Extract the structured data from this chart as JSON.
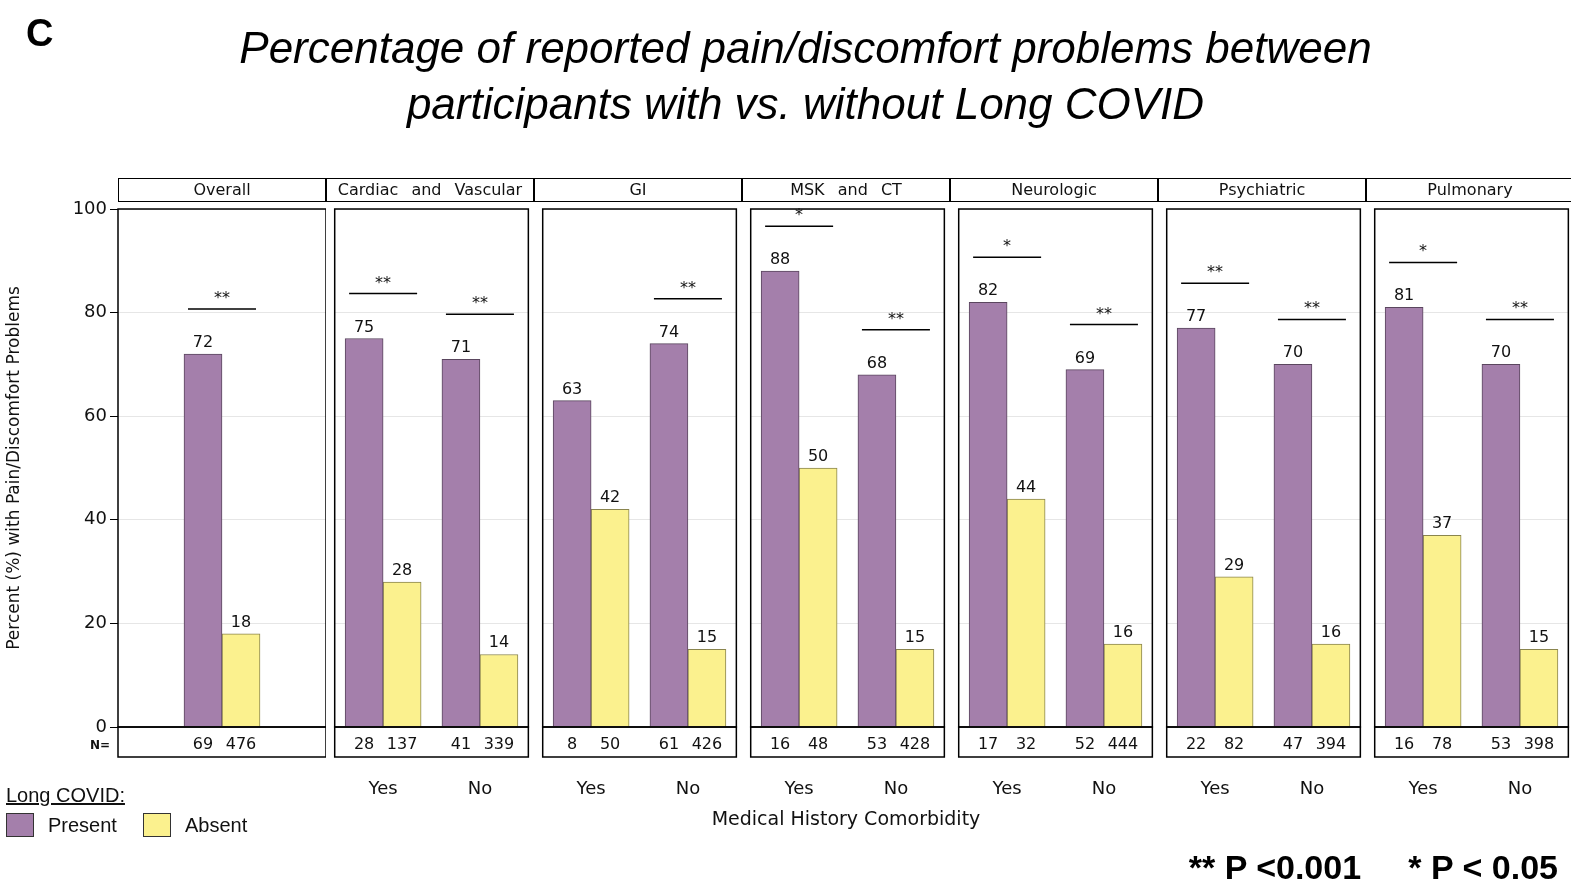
{
  "chart_data": [
    {
      "type": "bar",
      "title": "Percentage of reported pain/discomfort problems between participants with vs. without Long COVID",
      "subtitle": "Overall",
      "ylabel": "Percent (%) with Pain/Discomfort Problems",
      "legend_title": "Long COVID:",
      "legend": "bottom left",
      "categories": [
        null
      ],
      "series": [
        {
          "name": "Present",
          "color": "#a47fab",
          "values": [
            72
          ]
        },
        {
          "name": "Absent",
          "color": "#fbf18e",
          "values": [
            18
          ]
        }
      ],
      "ylim": [
        0,
        100
      ],
      "yticks": [
        0,
        20,
        40,
        60,
        80,
        100
      ],
      "grid": "y",
      "tick_labels": "y",
      "data_labels": true,
      "annotations": [
        {
          "text": "**",
          "y": 72
        },
        "69",
        "476",
        "N=",
        "C"
      ]
    },
    {
      "type": "bar",
      "subtitle": "Cardiac and Vascular",
      "categories": [
        "Yes",
        "No"
      ],
      "series": [
        {
          "color": "#a47fab",
          "values": [
            75,
            71
          ]
        },
        {
          "color": "#fbf18e",
          "values": [
            28,
            14
          ]
        }
      ],
      "ylim": [
        0,
        100
      ],
      "yticks": [
        0,
        20,
        40,
        60,
        80,
        100
      ],
      "grid": "y",
      "tick_labels": "x",
      "data_labels": true,
      "annotations": [
        {
          "text": "**",
          "x": "Yes",
          "y": 75
        },
        {
          "text": "**",
          "x": "No",
          "y": 71
        },
        "28",
        "137",
        "41",
        "339"
      ]
    },
    {
      "type": "bar",
      "subtitle": "GI",
      "categories": [
        "Yes",
        "No"
      ],
      "series": [
        {
          "color": "#a47fab",
          "values": [
            63,
            74
          ]
        },
        {
          "color": "#fbf18e",
          "values": [
            42,
            15
          ]
        }
      ],
      "ylim": [
        0,
        100
      ],
      "yticks": [
        0,
        20,
        40,
        60,
        80,
        100
      ],
      "grid": "y",
      "tick_labels": "x",
      "data_labels": true,
      "annotations": [
        {
          "text": "**",
          "x": "No",
          "y": 74
        },
        "8",
        "50",
        "61",
        "426"
      ]
    },
    {
      "type": "bar",
      "subtitle": "MSK and CT",
      "xlabel": "Medical History Comorbidity",
      "categories": [
        "Yes",
        "No"
      ],
      "series": [
        {
          "color": "#a47fab",
          "values": [
            88,
            68
          ]
        },
        {
          "color": "#fbf18e",
          "values": [
            50,
            15
          ]
        }
      ],
      "ylim": [
        0,
        100
      ],
      "yticks": [
        0,
        20,
        40,
        60,
        80,
        100
      ],
      "grid": "y",
      "tick_labels": "x",
      "data_labels": true,
      "annotations": [
        {
          "text": "*",
          "x": "Yes",
          "y": 88
        },
        {
          "text": "**",
          "x": "No",
          "y": 68
        },
        "16",
        "48",
        "53",
        "428"
      ]
    },
    {
      "type": "bar",
      "subtitle": "Neurologic",
      "categories": [
        "Yes",
        "No"
      ],
      "series": [
        {
          "color": "#a47fab",
          "values": [
            82,
            69
          ]
        },
        {
          "color": "#fbf18e",
          "values": [
            44,
            16
          ]
        }
      ],
      "ylim": [
        0,
        100
      ],
      "yticks": [
        0,
        20,
        40,
        60,
        80,
        100
      ],
      "grid": "y",
      "tick_labels": "x",
      "data_labels": true,
      "annotations": [
        {
          "text": "*",
          "x": "Yes",
          "y": 82
        },
        {
          "text": "**",
          "x": "No",
          "y": 69
        },
        "17",
        "32",
        "52",
        "444"
      ]
    },
    {
      "type": "bar",
      "subtitle": "Psychiatric",
      "categories": [
        "Yes",
        "No"
      ],
      "series": [
        {
          "color": "#a47fab",
          "values": [
            77,
            70
          ]
        },
        {
          "color": "#fbf18e",
          "values": [
            29,
            16
          ]
        }
      ],
      "ylim": [
        0,
        100
      ],
      "yticks": [
        0,
        20,
        40,
        60,
        80,
        100
      ],
      "grid": "y",
      "tick_labels": "x",
      "data_labels": true,
      "annotations": [
        {
          "text": "**",
          "x": "Yes",
          "y": 77
        },
        {
          "text": "**",
          "x": "No",
          "y": 70
        },
        "22",
        "82",
        "47",
        "394"
      ]
    },
    {
      "type": "bar",
      "subtitle": "Pulmonary",
      "categories": [
        "Yes",
        "No"
      ],
      "series": [
        {
          "color": "#a47fab",
          "values": [
            81,
            70
          ]
        },
        {
          "color": "#fbf18e",
          "values": [
            37,
            15
          ]
        }
      ],
      "ylim": [
        0,
        100
      ],
      "yticks": [
        0,
        20,
        40,
        60,
        80,
        100
      ],
      "grid": "y",
      "tick_labels": "x",
      "data_labels": true,
      "annotations": [
        {
          "text": "*",
          "x": "Yes",
          "y": 81
        },
        {
          "text": "**",
          "x": "No",
          "y": 70
        },
        "16",
        "78",
        "53",
        "398",
        "** P <0.001     * P < 0.05"
      ]
    }
  ]
}
